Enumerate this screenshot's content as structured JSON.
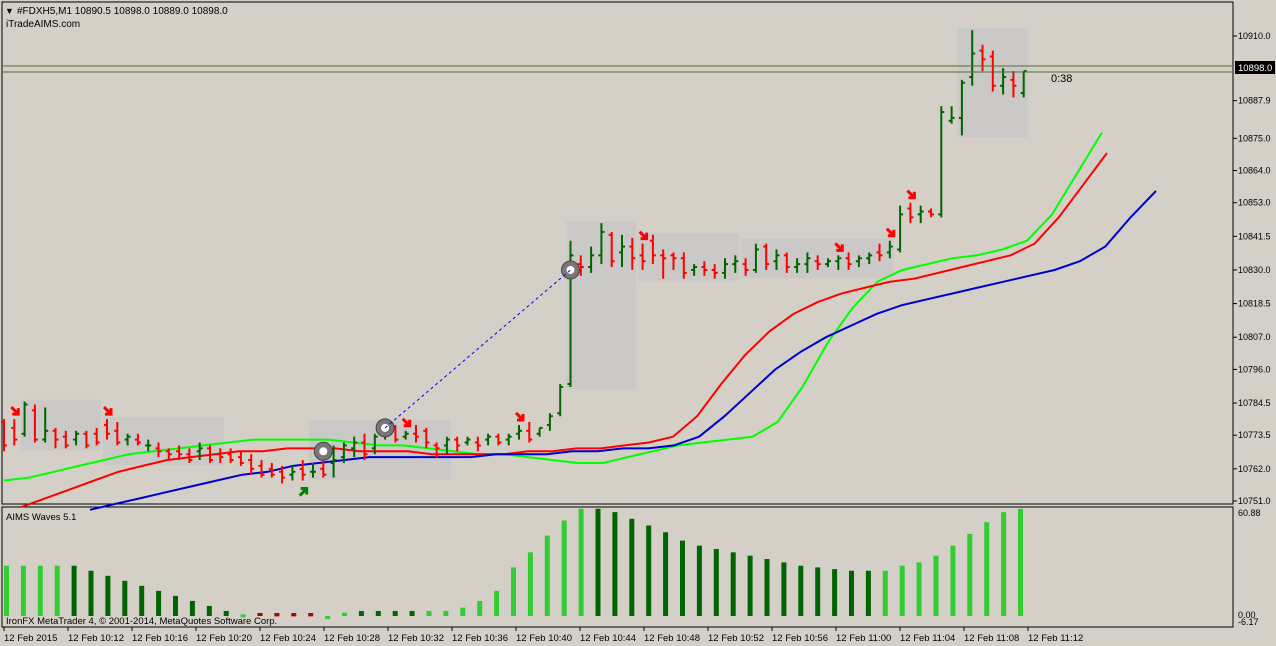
{
  "header": {
    "symbol_line": "#FDXH5,M1  10890.5 10898.0 10889.0 10898.0",
    "brand": "iTradeAIMS.com",
    "countdown": "0:38"
  },
  "footer": {
    "copyright": "IronFX MetaTrader 4, © 2001-2014, MetaQuotes Software Corp."
  },
  "colors": {
    "background": "#d4d0c8",
    "chart_background": "#d4d0c8",
    "bull_candle": "#006400",
    "bear_candle": "#ff0000",
    "ma_fast": "#00ff00",
    "ma_mid": "#ff0000",
    "ma_slow": "#0000cd",
    "wave_bright": "#32cd32",
    "wave_dark": "#006400",
    "wave_negative": "#b00000",
    "zone_box": "#c8c8c8",
    "signal_arrow_down": "#ff0000",
    "signal_arrow_up": "#008000"
  },
  "chart_data": [
    {
      "type": "candlestick",
      "symbol": "#FDXH5",
      "timeframe": "M1",
      "ohlc_readout": {
        "open": 10890.5,
        "high": 10898.0,
        "low": 10889.0,
        "close": 10898.0
      },
      "current_price": "10898.0",
      "y_ticks": [
        "10910.0",
        "10887.9",
        "10875.0",
        "10864.0",
        "10853.0",
        "10841.5",
        "10830.0",
        "10818.5",
        "10807.0",
        "10796.0",
        "10784.5",
        "10773.5",
        "10762.0",
        "10751.0"
      ],
      "y_tick_values": [
        10910.0,
        10887.9,
        10875.0,
        10864.0,
        10853.0,
        10841.5,
        10830.0,
        10818.5,
        10807.0,
        10796.0,
        10784.5,
        10773.5,
        10762.0,
        10751.0
      ],
      "ylim": [
        10749,
        10913
      ],
      "x_ticks": [
        "12 Feb 2015",
        "12 Feb 10:12",
        "12 Feb 10:16",
        "12 Feb 10:20",
        "12 Feb 10:24",
        "12 Feb 10:28",
        "12 Feb 10:32",
        "12 Feb 10:36",
        "12 Feb 10:40",
        "12 Feb 10:44",
        "12 Feb 10:48",
        "12 Feb 10:52",
        "12 Feb 10:56",
        "12 Feb 11:00",
        "12 Feb 11:04",
        "12 Feb 11:08",
        "12 Feb 11:12"
      ],
      "bars": [
        {
          "o": 10778,
          "h": 10779,
          "l": 10768,
          "c": 10770
        },
        {
          "o": 10776,
          "h": 10779,
          "l": 10770,
          "c": 10772
        },
        {
          "o": 10774,
          "h": 10785,
          "l": 10773,
          "c": 10784
        },
        {
          "o": 10782,
          "h": 10784,
          "l": 10771,
          "c": 10772
        },
        {
          "o": 10772,
          "h": 10783,
          "l": 10771,
          "c": 10775
        },
        {
          "o": 10775,
          "h": 10776,
          "l": 10769,
          "c": 10772
        },
        {
          "o": 10773,
          "h": 10775,
          "l": 10769,
          "c": 10770
        },
        {
          "o": 10772,
          "h": 10775,
          "l": 10770,
          "c": 10774
        },
        {
          "o": 10774,
          "h": 10775,
          "l": 10769,
          "c": 10770
        },
        {
          "o": 10774,
          "h": 10776,
          "l": 10770,
          "c": 10771
        },
        {
          "o": 10777,
          "h": 10779,
          "l": 10772,
          "c": 10774
        },
        {
          "o": 10775,
          "h": 10778,
          "l": 10770,
          "c": 10771
        },
        {
          "o": 10772,
          "h": 10774,
          "l": 10770,
          "c": 10773
        },
        {
          "o": 10772,
          "h": 10774,
          "l": 10770,
          "c": 10771
        },
        {
          "o": 10770,
          "h": 10772,
          "l": 10768,
          "c": 10770
        },
        {
          "o": 10769,
          "h": 10771,
          "l": 10766,
          "c": 10768
        },
        {
          "o": 10768,
          "h": 10769,
          "l": 10765,
          "c": 10767
        },
        {
          "o": 10768,
          "h": 10770,
          "l": 10765,
          "c": 10767
        },
        {
          "o": 10767,
          "h": 10769,
          "l": 10764,
          "c": 10765
        },
        {
          "o": 10768,
          "h": 10771,
          "l": 10765,
          "c": 10769
        },
        {
          "o": 10769,
          "h": 10770,
          "l": 10764,
          "c": 10765
        },
        {
          "o": 10767,
          "h": 10769,
          "l": 10764,
          "c": 10766
        },
        {
          "o": 10767,
          "h": 10769,
          "l": 10764,
          "c": 10765
        },
        {
          "o": 10766,
          "h": 10768,
          "l": 10763,
          "c": 10764
        },
        {
          "o": 10765,
          "h": 10767,
          "l": 10760,
          "c": 10762
        },
        {
          "o": 10763,
          "h": 10765,
          "l": 10759,
          "c": 10760
        },
        {
          "o": 10762,
          "h": 10764,
          "l": 10759,
          "c": 10760
        },
        {
          "o": 10761,
          "h": 10763,
          "l": 10757,
          "c": 10759
        },
        {
          "o": 10760,
          "h": 10763,
          "l": 10758,
          "c": 10761
        },
        {
          "o": 10762,
          "h": 10765,
          "l": 10758,
          "c": 10760
        },
        {
          "o": 10761,
          "h": 10764,
          "l": 10759,
          "c": 10761
        },
        {
          "o": 10762,
          "h": 10767,
          "l": 10759,
          "c": 10760
        },
        {
          "o": 10764,
          "h": 10770,
          "l": 10759,
          "c": 10765
        },
        {
          "o": 10766,
          "h": 10771,
          "l": 10764,
          "c": 10770
        },
        {
          "o": 10769,
          "h": 10773,
          "l": 10766,
          "c": 10771
        },
        {
          "o": 10771,
          "h": 10774,
          "l": 10765,
          "c": 10767
        },
        {
          "o": 10769,
          "h": 10774,
          "l": 10767,
          "c": 10773
        },
        {
          "o": 10775,
          "h": 10778,
          "l": 10772,
          "c": 10777
        },
        {
          "o": 10776,
          "h": 10777,
          "l": 10771,
          "c": 10772
        },
        {
          "o": 10773,
          "h": 10775,
          "l": 10772,
          "c": 10774
        },
        {
          "o": 10774,
          "h": 10777,
          "l": 10771,
          "c": 10773
        },
        {
          "o": 10775,
          "h": 10776,
          "l": 10769,
          "c": 10771
        },
        {
          "o": 10770,
          "h": 10771,
          "l": 10766,
          "c": 10769
        },
        {
          "o": 10770,
          "h": 10773,
          "l": 10767,
          "c": 10772
        },
        {
          "o": 10772,
          "h": 10773,
          "l": 10768,
          "c": 10770
        },
        {
          "o": 10771,
          "h": 10773,
          "l": 10770,
          "c": 10772
        },
        {
          "o": 10771,
          "h": 10773,
          "l": 10768,
          "c": 10770
        },
        {
          "o": 10772,
          "h": 10774,
          "l": 10770,
          "c": 10773
        },
        {
          "o": 10773,
          "h": 10774,
          "l": 10770,
          "c": 10771
        },
        {
          "o": 10772,
          "h": 10774,
          "l": 10770,
          "c": 10773
        },
        {
          "o": 10774,
          "h": 10777,
          "l": 10772,
          "c": 10775
        },
        {
          "o": 10775,
          "h": 10778,
          "l": 10771,
          "c": 10772
        },
        {
          "o": 10774,
          "h": 10776,
          "l": 10773,
          "c": 10776
        },
        {
          "o": 10777,
          "h": 10781,
          "l": 10775,
          "c": 10780
        },
        {
          "o": 10781,
          "h": 10791,
          "l": 10780,
          "c": 10790
        },
        {
          "o": 10791,
          "h": 10840,
          "l": 10790,
          "c": 10835
        },
        {
          "o": 10832,
          "h": 10835,
          "l": 10828,
          "c": 10831
        },
        {
          "o": 10831,
          "h": 10838,
          "l": 10829,
          "c": 10835
        },
        {
          "o": 10835,
          "h": 10846,
          "l": 10832,
          "c": 10843
        },
        {
          "o": 10842,
          "h": 10843,
          "l": 10831,
          "c": 10833
        },
        {
          "o": 10836,
          "h": 10842,
          "l": 10831,
          "c": 10838
        },
        {
          "o": 10838,
          "h": 10841,
          "l": 10830,
          "c": 10834
        },
        {
          "o": 10835,
          "h": 10839,
          "l": 10830,
          "c": 10833
        },
        {
          "o": 10840,
          "h": 10842,
          "l": 10832,
          "c": 10835
        },
        {
          "o": 10835,
          "h": 10837,
          "l": 10827,
          "c": 10834
        },
        {
          "o": 10835,
          "h": 10836,
          "l": 10830,
          "c": 10834
        },
        {
          "o": 10834,
          "h": 10836,
          "l": 10827,
          "c": 10829
        },
        {
          "o": 10830,
          "h": 10832,
          "l": 10828,
          "c": 10831
        },
        {
          "o": 10831,
          "h": 10833,
          "l": 10828,
          "c": 10830
        },
        {
          "o": 10830,
          "h": 10832,
          "l": 10827,
          "c": 10829
        },
        {
          "o": 10829,
          "h": 10834,
          "l": 10827,
          "c": 10832
        },
        {
          "o": 10832,
          "h": 10835,
          "l": 10829,
          "c": 10833
        },
        {
          "o": 10832,
          "h": 10834,
          "l": 10828,
          "c": 10830
        },
        {
          "o": 10830,
          "h": 10839,
          "l": 10829,
          "c": 10837
        },
        {
          "o": 10838,
          "h": 10839,
          "l": 10830,
          "c": 10832
        },
        {
          "o": 10833,
          "h": 10837,
          "l": 10830,
          "c": 10835
        },
        {
          "o": 10835,
          "h": 10836,
          "l": 10829,
          "c": 10831
        },
        {
          "o": 10831,
          "h": 10834,
          "l": 10829,
          "c": 10832
        },
        {
          "o": 10832,
          "h": 10836,
          "l": 10829,
          "c": 10834
        },
        {
          "o": 10833,
          "h": 10835,
          "l": 10830,
          "c": 10832
        },
        {
          "o": 10832,
          "h": 10834,
          "l": 10831,
          "c": 10833
        },
        {
          "o": 10833,
          "h": 10835,
          "l": 10830,
          "c": 10834
        },
        {
          "o": 10834,
          "h": 10836,
          "l": 10830,
          "c": 10832
        },
        {
          "o": 10833,
          "h": 10835,
          "l": 10831,
          "c": 10834
        },
        {
          "o": 10834,
          "h": 10836,
          "l": 10832,
          "c": 10835
        },
        {
          "o": 10836,
          "h": 10839,
          "l": 10833,
          "c": 10835
        },
        {
          "o": 10836,
          "h": 10840,
          "l": 10834,
          "c": 10838
        },
        {
          "o": 10837,
          "h": 10852,
          "l": 10836,
          "c": 10849
        },
        {
          "o": 10851,
          "h": 10853,
          "l": 10846,
          "c": 10848
        },
        {
          "o": 10849,
          "h": 10852,
          "l": 10846,
          "c": 10850
        },
        {
          "o": 10850,
          "h": 10851,
          "l": 10848,
          "c": 10849
        },
        {
          "o": 10849,
          "h": 10886,
          "l": 10848,
          "c": 10884
        },
        {
          "o": 10881,
          "h": 10886,
          "l": 10880,
          "c": 10882
        },
        {
          "o": 10882,
          "h": 10895,
          "l": 10876,
          "c": 10894
        },
        {
          "o": 10896,
          "h": 10912,
          "l": 10893,
          "c": 10904
        },
        {
          "o": 10905,
          "h": 10907,
          "l": 10898,
          "c": 10902
        },
        {
          "o": 10903,
          "h": 10905,
          "l": 10891,
          "c": 10893
        },
        {
          "o": 10893,
          "h": 10899,
          "l": 10890,
          "c": 10896
        },
        {
          "o": 10895,
          "h": 10898,
          "l": 10889,
          "c": 10893
        },
        {
          "o": 10890.5,
          "h": 10898,
          "l": 10889,
          "c": 10898
        }
      ],
      "moving_averages": [
        {
          "color": "lime",
          "values": [
            10758,
            10759,
            10761,
            10763,
            10765,
            10767,
            10768,
            10769,
            10770,
            10771,
            10772,
            10772,
            10772,
            10772,
            10771,
            10770,
            10770,
            10769,
            10768,
            10767,
            10767,
            10766,
            10765,
            10764,
            10764,
            10766,
            10768,
            10770,
            10771,
            10772,
            10773,
            10778,
            10790,
            10805,
            10817,
            10826,
            10830,
            10832,
            10834,
            10835,
            10837,
            10840,
            10849,
            10863,
            10877
          ]
        },
        {
          "color": "red",
          "values": [
            10749,
            10752,
            10755,
            10758,
            10761,
            10763,
            10765,
            10766,
            10767,
            10768,
            10768,
            10769,
            10769,
            10769,
            10768,
            10768,
            10768,
            10767,
            10767,
            10767,
            10767,
            10768,
            10768,
            10769,
            10769,
            10770,
            10771,
            10773,
            10780,
            10791,
            10801,
            10809,
            10815,
            10819,
            10822,
            10824,
            10826,
            10827,
            10829,
            10831,
            10833,
            10835,
            10839,
            10848,
            10859,
            10870
          ]
        },
        {
          "color": "blue",
          "values": [
            10748,
            10750,
            10752,
            10754,
            10756,
            10758,
            10760,
            10761,
            10763,
            10764,
            10765,
            10766,
            10766,
            10766,
            10766,
            10766,
            10767,
            10767,
            10767,
            10768,
            10768,
            10769,
            10769,
            10770,
            10773,
            10780,
            10788,
            10796,
            10802,
            10807,
            10811,
            10815,
            10818,
            10820,
            10822,
            10824,
            10826,
            10828,
            10830,
            10833,
            10838,
            10848,
            10857
          ]
        }
      ]
    },
    {
      "type": "bar",
      "title": "AIMS Waves 5.1",
      "y_ticks": [
        "60.88",
        "0.00",
        "-6.17"
      ],
      "ylim": [
        -6.17,
        60.88
      ],
      "values": [
        30,
        30,
        30,
        30,
        30,
        27,
        24,
        21,
        18,
        15,
        12,
        9,
        6,
        3,
        1,
        -1,
        -2,
        -2,
        -2,
        0,
        2,
        3,
        3,
        3,
        3,
        3,
        3,
        5,
        9,
        15,
        29,
        38,
        48,
        57,
        64,
        64,
        62,
        58,
        54,
        50,
        45,
        42,
        40,
        38,
        36,
        34,
        32,
        30,
        29,
        28,
        27,
        27,
        27,
        30,
        32,
        36,
        42,
        49,
        56,
        62,
        64
      ],
      "shades": [
        "b",
        "b",
        "b",
        "b",
        "d",
        "d",
        "d",
        "d",
        "d",
        "d",
        "d",
        "d",
        "d",
        "d",
        "b",
        "n",
        "n",
        "n",
        "n",
        "b",
        "b",
        "d",
        "d",
        "d",
        "d",
        "b",
        "b",
        "b",
        "b",
        "b",
        "b",
        "b",
        "b",
        "b",
        "b",
        "d",
        "d",
        "d",
        "d",
        "d",
        "d",
        "d",
        "d",
        "d",
        "d",
        "d",
        "d",
        "d",
        "d",
        "d",
        "d",
        "d",
        "b",
        "b",
        "b",
        "b",
        "b",
        "b",
        "b",
        "b",
        "b"
      ]
    }
  ]
}
